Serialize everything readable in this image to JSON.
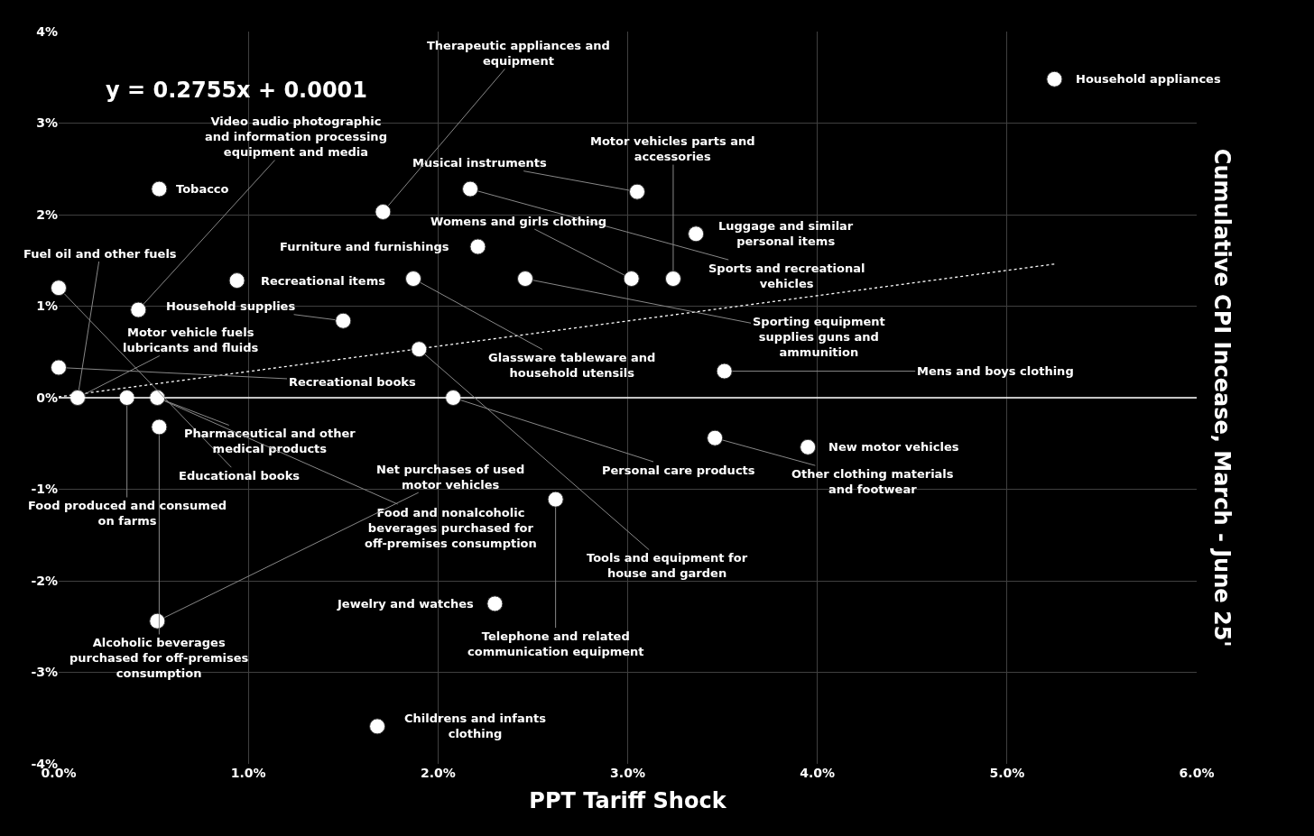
{
  "chart_data": {
    "type": "scatter",
    "xlabel": "PPT Tariff Shock",
    "ylabel": "Cumulative CPI Incease, March - June 25'",
    "annotations": [
      "y = 0.2755x + 0.0001"
    ],
    "xlim": [
      0,
      6
    ],
    "xticks": [
      {
        "value": 0,
        "label": "0.0%"
      },
      {
        "value": 1,
        "label": "1.0%"
      },
      {
        "value": 2,
        "label": "2.0%"
      },
      {
        "value": 3,
        "label": "3.0%"
      },
      {
        "value": 4,
        "label": "4.0%"
      },
      {
        "value": 5,
        "label": "5.0%"
      },
      {
        "value": 6,
        "label": "6.0%"
      }
    ],
    "ylim": [
      -4,
      4
    ],
    "yticks": [
      {
        "value": -4,
        "label": "-4%"
      },
      {
        "value": -3,
        "label": "-3%"
      },
      {
        "value": -2,
        "label": "-2%"
      },
      {
        "value": -1,
        "label": "-1%"
      },
      {
        "value": 0,
        "label": "0%"
      },
      {
        "value": 1,
        "label": "1%"
      },
      {
        "value": 2,
        "label": "2%"
      },
      {
        "value": 3,
        "label": "3%"
      },
      {
        "value": 4,
        "label": "4%"
      }
    ],
    "grid": true,
    "legend": false,
    "marker": "circle",
    "ref_lines": [
      {
        "axis": "y",
        "value": 0,
        "color": "#ffffff"
      }
    ],
    "series": [
      {
        "name": "Household appliances",
        "color": "#ffffff",
        "x": [
          5.25
        ],
        "values": [
          3.48
        ]
      },
      {
        "name": "Tobacco",
        "color": "#ffffff",
        "x": [
          0.53
        ],
        "values": [
          2.28
        ]
      },
      {
        "name": "Sports and recreational vehicles",
        "color": "#ffffff",
        "x": [
          2.17
        ],
        "values": [
          2.28
        ]
      },
      {
        "name": "Musical instruments",
        "color": "#ffffff",
        "x": [
          3.05
        ],
        "values": [
          2.25
        ]
      },
      {
        "name": "Therapeutic appliances and equipment",
        "color": "#ffffff",
        "x": [
          1.71
        ],
        "values": [
          2.03
        ]
      },
      {
        "name": "Luggage and similar personal items",
        "color": "#ffffff",
        "x": [
          3.36
        ],
        "values": [
          1.79
        ]
      },
      {
        "name": "Furniture and furnishings",
        "color": "#ffffff",
        "x": [
          2.21
        ],
        "values": [
          1.65
        ]
      },
      {
        "name": "Recreational items",
        "color": "#ffffff",
        "x": [
          0.94
        ],
        "values": [
          1.28
        ]
      },
      {
        "name": "Glassware tableware and household utensils",
        "color": "#ffffff",
        "x": [
          1.87
        ],
        "values": [
          1.3
        ]
      },
      {
        "name": "Sporting equipment supplies guns and ammunition",
        "color": "#ffffff",
        "x": [
          2.46
        ],
        "values": [
          1.3
        ]
      },
      {
        "name": "Womens and girls clothing",
        "color": "#ffffff",
        "x": [
          3.02
        ],
        "values": [
          1.3
        ]
      },
      {
        "name": "Motor vehicles parts and accessories",
        "color": "#ffffff",
        "x": [
          3.24
        ],
        "values": [
          1.3
        ]
      },
      {
        "name": "Educational books",
        "color": "#ffffff",
        "x": [
          0.0
        ],
        "values": [
          1.2
        ]
      },
      {
        "name": "Video audio photographic and information processing equipment and media",
        "color": "#ffffff",
        "x": [
          0.42
        ],
        "values": [
          0.96
        ]
      },
      {
        "name": "Household supplies",
        "color": "#ffffff",
        "x": [
          1.5
        ],
        "values": [
          0.84
        ]
      },
      {
        "name": "Tools and equipment for house and garden",
        "color": "#ffffff",
        "x": [
          1.9
        ],
        "values": [
          0.53
        ]
      },
      {
        "name": "Recreational books",
        "color": "#ffffff",
        "x": [
          0.0
        ],
        "values": [
          0.33
        ]
      },
      {
        "name": "Mens and boys clothing",
        "color": "#ffffff",
        "x": [
          3.51
        ],
        "values": [
          0.29
        ]
      },
      {
        "name": "Motor vehicle fuels lubricants and fluids",
        "color": "#ffffff",
        "x": [
          0.1
        ],
        "values": [
          0.0
        ]
      },
      {
        "name": "Fuel oil and other fuels",
        "color": "#ffffff",
        "x": [
          0.1
        ],
        "values": [
          0.0
        ]
      },
      {
        "name": "Food produced and consumed on farms",
        "color": "#ffffff",
        "x": [
          0.36
        ],
        "values": [
          0.0
        ]
      },
      {
        "name": "Pharmaceutical and other medical products",
        "color": "#ffffff",
        "x": [
          0.52
        ],
        "values": [
          0.0
        ]
      },
      {
        "name": "Food and nonalcoholic beverages purchased for off-premises consumption",
        "color": "#ffffff",
        "x": [
          0.52
        ],
        "values": [
          0.0
        ]
      },
      {
        "name": "Personal care products",
        "color": "#ffffff",
        "x": [
          2.08
        ],
        "values": [
          0.0
        ]
      },
      {
        "name": "Alcoholic beverages purchased for off-premises consumption",
        "color": "#ffffff",
        "x": [
          0.53
        ],
        "values": [
          -0.32
        ]
      },
      {
        "name": "Other clothing materials and footwear",
        "color": "#ffffff",
        "x": [
          3.46
        ],
        "values": [
          -0.44
        ]
      },
      {
        "name": "New motor vehicles",
        "color": "#ffffff",
        "x": [
          3.95
        ],
        "values": [
          -0.54
        ]
      },
      {
        "name": "Telephone and related communication equipment",
        "color": "#ffffff",
        "x": [
          2.62
        ],
        "values": [
          -1.11
        ]
      },
      {
        "name": "Jewelry and watches",
        "color": "#ffffff",
        "x": [
          2.3
        ],
        "values": [
          -2.25
        ]
      },
      {
        "name": "Net purchases of used motor vehicles",
        "color": "#ffffff",
        "x": [
          0.52
        ],
        "values": [
          -2.44
        ]
      },
      {
        "name": "Childrens and infants clothing",
        "color": "#ffffff",
        "x": [
          1.68
        ],
        "values": [
          -3.59
        ]
      },
      {
        "type": "line",
        "color": "#ffffff",
        "line_style": "dotted",
        "marker": "none",
        "x": [
          0,
          5.25
        ],
        "values": [
          0.01,
          1.46
        ]
      }
    ]
  }
}
